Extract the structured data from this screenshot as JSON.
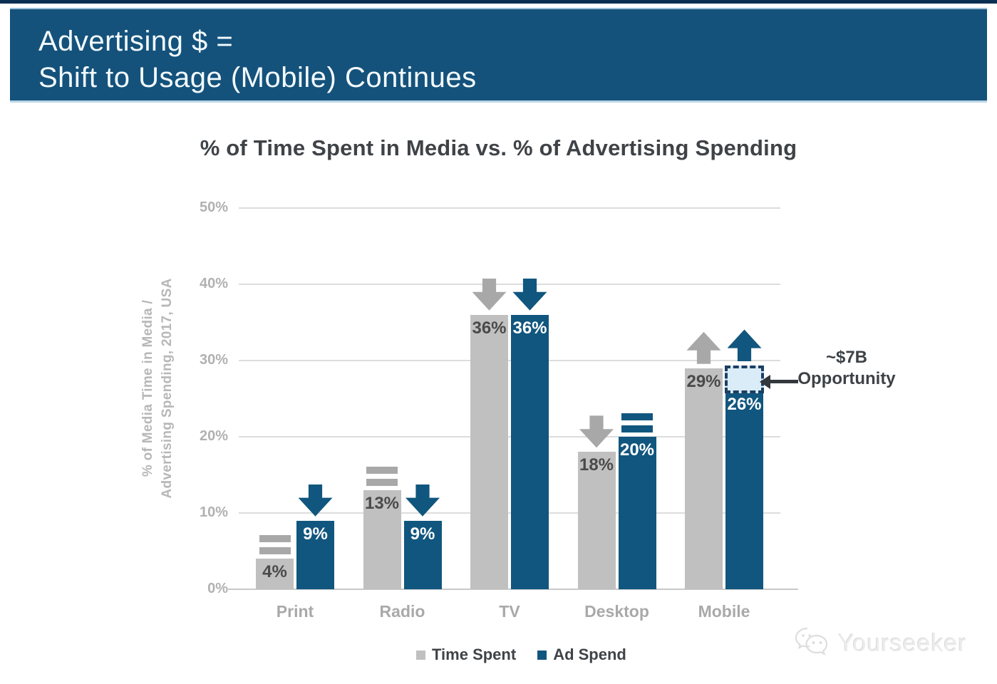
{
  "banner": {
    "title_line1": "Advertising $ =",
    "title_line2": "Shift to Usage (Mobile) Continues"
  },
  "chart_data": {
    "type": "bar",
    "title": "% of Time Spent in Media vs. % of Advertising Spending",
    "ylabel_line1": "% of Media Time in Media /",
    "ylabel_line2": "Advertising Spending, 2017, USA",
    "categories": [
      "Print",
      "Radio",
      "TV",
      "Desktop",
      "Mobile"
    ],
    "series": [
      {
        "name": "Time Spent",
        "color": "#c0c0c0",
        "label_color": "#4a4a4a",
        "indicator_color": "#a8a8a8",
        "values": [
          4,
          13,
          36,
          18,
          29
        ],
        "data_labels": [
          "4%",
          "13%",
          "36%",
          "18%",
          "29%"
        ],
        "trends": [
          "equal",
          "equal",
          "down",
          "down",
          "up"
        ]
      },
      {
        "name": "Ad Spend",
        "color": "#11567e",
        "label_color": "#ffffff",
        "indicator_color": "#11567e",
        "values": [
          9,
          9,
          36,
          20,
          26
        ],
        "data_labels": [
          "9%",
          "9%",
          "36%",
          "20%",
          "26%"
        ],
        "trends": [
          "down",
          "down",
          "down",
          "equal",
          "up"
        ]
      }
    ],
    "y_ticks": [
      "0%",
      "10%",
      "20%",
      "30%",
      "40%",
      "50%"
    ],
    "ylim": [
      0,
      50
    ],
    "grid": true,
    "legend_position": "bottom",
    "annotation": {
      "line1": "~$7B",
      "line2": "Opportunity"
    },
    "opportunity_box": {
      "category": "Mobile",
      "series_index": 1,
      "from_pct": 26,
      "to_pct": 29.3
    }
  },
  "legend": {
    "items": [
      {
        "label": "Time Spent",
        "color": "#c0c0c0"
      },
      {
        "label": "Ad Spend",
        "color": "#11567e"
      }
    ]
  },
  "watermark": {
    "text": "Yourseeker"
  },
  "colors": {
    "banner_bg": "#14527b",
    "top_strip": "#0b2f52",
    "bar_blue": "#11567e",
    "bar_gray": "#c0c0c0",
    "grid": "#dcdcdc",
    "axis_text": "#b1b1b1",
    "title_text": "#3f4347",
    "opportunity_fill": "#d9ecf7",
    "opportunity_border": "#1c3f63"
  }
}
